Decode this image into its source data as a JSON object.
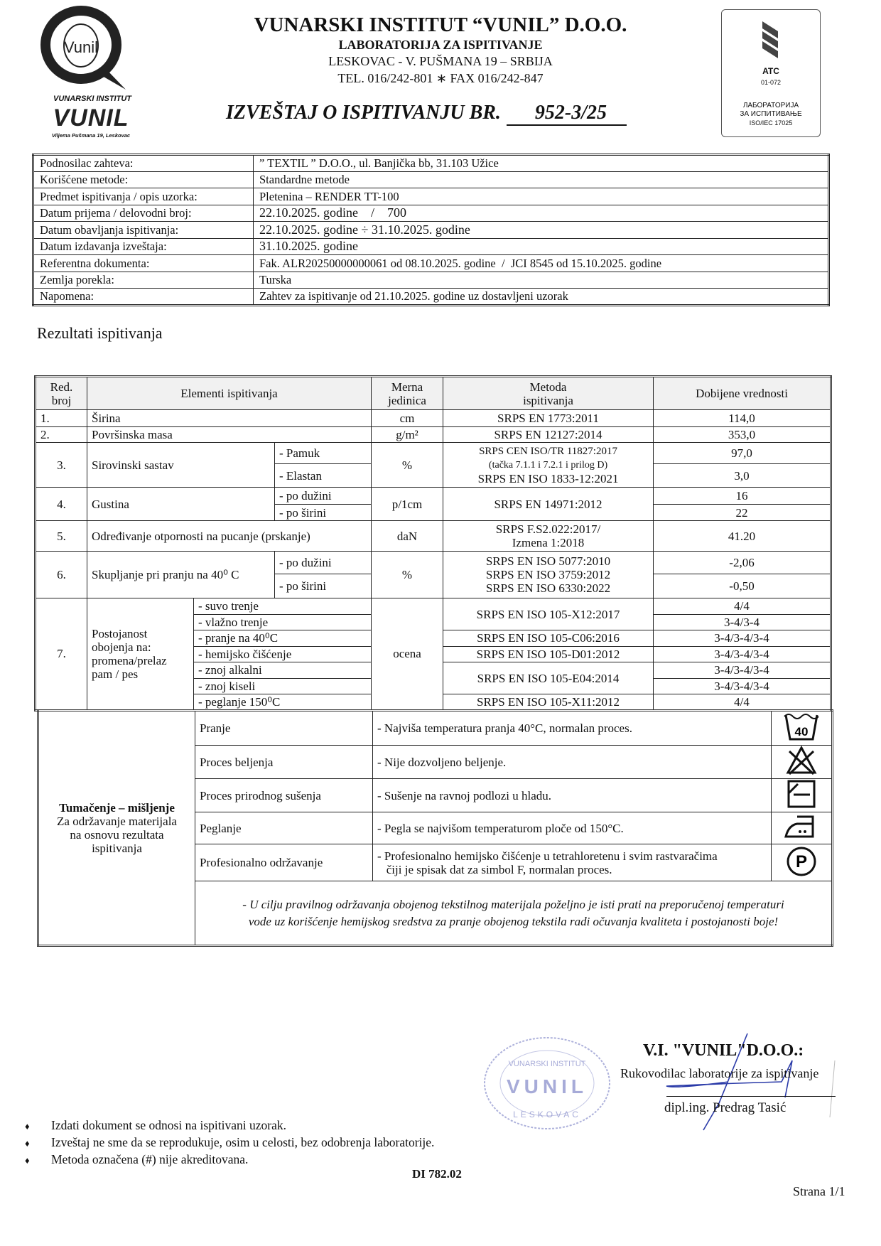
{
  "header": {
    "logo": {
      "brand": "Vunil",
      "caption": "VUNARSKI INSTITUT",
      "wordmark": "VUNIL",
      "address": "Viljema Pušmana 19, Leskovac"
    },
    "institute": "VUNARSKI INSTITUT “VUNIL” D.O.O.",
    "lab": "LABORATORIJA ZA ISPITIVANJE",
    "address": "LESKOVAC - V. PUŠMANA 19 – SRBIJA",
    "phone": "TEL. 016/242-801 ∗ FAX  016/242-847",
    "report_title": "IZVEŠTAJ O ISPITIVANJU BR.",
    "report_number": "952-3/25",
    "accreditation": {
      "mark": "ATC",
      "code": "01-072",
      "line1": "ЛАБОРАТОРИЈА",
      "line2": "ЗА ИСПИТИВАЊЕ",
      "standard": "ISO/IEC 17025"
    }
  },
  "info": {
    "rows": [
      {
        "label": "Podnosilac zahteva:",
        "value": "” TEXTIL ” D.O.O., ul. Banjička bb, 31.103 Užice"
      },
      {
        "label": "Korišćene metode:",
        "value": "Standardne metode"
      },
      {
        "label": "Predmet ispitivanja / opis uzorka:",
        "value": "Pletenina – RENDER TT-100"
      },
      {
        "label": "Datum prijema / delovodni broj:",
        "value": "22.10.2025. godine    /    700"
      },
      {
        "label": "Datum obavljanja ispitivanja:",
        "value": "22.10.2025. godine ÷ 31.10.2025. godine"
      },
      {
        "label": "Datum izdavanja izveštaja:",
        "value": "31.10.2025. godine"
      },
      {
        "label": "Referentna dokumenta:",
        "value": "Fak. ALR20250000000061 od 08.10.2025. godine  /  JCI 8545 od 15.10.2025. godine"
      },
      {
        "label": "Zemlja porekla:",
        "value": "Turska"
      },
      {
        "label": "Napomena:",
        "value": "Zahtev za ispitivanje od 21.10.2025. godine uz dostavljeni uzorak"
      }
    ]
  },
  "results": {
    "title": "Rezultati ispitivanja",
    "headers": {
      "no": [
        "Red.",
        "broj"
      ],
      "element": "Elementi ispitivanja",
      "unit": [
        "Merna",
        "jedinica"
      ],
      "method": [
        "Metoda",
        "ispitivanja"
      ],
      "value": "Dobijene vrednosti"
    },
    "rows": [
      {
        "no": "1.",
        "element": "Širina",
        "unit": "cm",
        "method": "SRPS EN 1773:2011",
        "value": "114,0"
      },
      {
        "no": "2.",
        "element": "Površinska masa",
        "unit": "g/m²",
        "method": "SRPS EN 12127:2014",
        "value": "353,0"
      },
      {
        "no": "3.",
        "element": "Sirovinski sastav",
        "unit": "%",
        "method": [
          "SRPS CEN ISO/TR 11827:2017",
          "(tačka 7.1.1 i 7.2.1 i prilog D)",
          "SRPS EN ISO 1833-12:2021"
        ],
        "sub": [
          {
            "label": "- Pamuk",
            "value": "97,0"
          },
          {
            "label": "- Elastan",
            "value": "3,0"
          }
        ]
      },
      {
        "no": "4.",
        "element": "Gustina",
        "unit": "p/1cm",
        "method": "SRPS EN 14971:2012",
        "sub": [
          {
            "label": "- po dužini",
            "value": "16"
          },
          {
            "label": "- po širini",
            "value": "22"
          }
        ]
      },
      {
        "no": "5.",
        "element": "Određivanje otpornosti na pucanje (prskanje)",
        "unit": "daN",
        "method": [
          "SRPS F.S2.022:2017/",
          "Izmena 1:2018"
        ],
        "value": "41.20"
      },
      {
        "no": "6.",
        "element": "Skupljanje pri pranju na 40⁰ C",
        "unit": "%",
        "method": [
          "SRPS EN ISO 5077:2010",
          "SRPS EN ISO 3759:2012",
          "SRPS EN ISO 6330:2022"
        ],
        "sub": [
          {
            "label": "- po dužini",
            "value": "-2,06"
          },
          {
            "label": "- po širini",
            "value": "-0,50"
          }
        ]
      },
      {
        "no": "7.",
        "element": [
          "Postojanost",
          "obojenja na:",
          "promena/prelaz",
          "pam / pes"
        ],
        "unit": "ocena",
        "methods": [
          "SRPS EN ISO 105-X12:2017",
          "SRPS EN ISO 105-C06:2016",
          "SRPS EN ISO 105-D01:2012",
          "SRPS EN ISO 105-E04:2014",
          "SRPS EN ISO 105-X11:2012"
        ],
        "sub": [
          {
            "label": "- suvo trenje",
            "value": "4/4"
          },
          {
            "label": "- vlažno trenje",
            "value": "3-4/3-4"
          },
          {
            "label": "- pranje na 40⁰C",
            "value": "3-4/3-4/3-4"
          },
          {
            "label": "- hemijsko čišćenje",
            "value": "3-4/3-4/3-4"
          },
          {
            "label": "- znoj alkalni",
            "value": "3-4/3-4/3-4"
          },
          {
            "label": "- znoj kiseli",
            "value": "3-4/3-4/3-4"
          },
          {
            "label": "- peglanje 150⁰C",
            "value": "4/4"
          }
        ]
      }
    ]
  },
  "interpretation": {
    "heading": "Tumačenje – mišljenje",
    "subtitle": [
      "Za održavanje materijala",
      "na osnovu rezultata",
      "ispitivanja"
    ],
    "rows": [
      {
        "label": "Pranje",
        "text": "-  Najviša temperatura pranja 40°C, normalan proces.",
        "icon": "wash-40-icon",
        "icon_text": "40"
      },
      {
        "label": "Proces beljenja",
        "text": "- Nije dozvoljeno beljenje.",
        "icon": "no-bleach-icon"
      },
      {
        "label": "Proces prirodnog sušenja",
        "text": "-  Sušenje na ravnoj podlozi u hladu.",
        "icon": "flat-dry-shade-icon"
      },
      {
        "label": "Peglanje",
        "text": "-  Pegla se najvišom temperaturom ploče od 150°C.",
        "icon": "iron-two-dots-icon"
      },
      {
        "label": "Profesionalno održavanje",
        "text": [
          "-  Profesionalno hemijsko čišćenje u tetrahloretenu i svim rastvaračima",
          "   čiji je spisak dat za simbol F, normalan proces."
        ],
        "icon": "professional-clean-p-icon",
        "icon_text": "P"
      }
    ],
    "note": [
      "- U cilju pravilnog održavanja obojenog tekstilnog materijala poželjno je isti prati na preporučenoj temperaturi",
      "vode uz korišćenje hemijskog sredstva za pranje obojenog tekstila radi očuvanja kvaliteta i postojanosti boje!"
    ]
  },
  "signature": {
    "company": "V.I. \"VUNIL\"D.O.O.:",
    "role": "Rukovodilac laboratorije za ispitivanje",
    "name": "dipl.ing. Predrag Tasić",
    "stamp_text": "VUNARSKI INSTITUT VUNIL LESKOVAC",
    "stamp_color": "#5a63b8",
    "ink_color": "#2a3aa8"
  },
  "footer": {
    "notes": [
      "Izdati dokument se odnosi na ispitivani uzorak.",
      "Izveštaj ne sme da se reprodukuje, osim u celosti, bez odobrenja laboratorije.",
      "Metoda označena (#) nije akreditovana."
    ],
    "doc_code": "DI 782.02",
    "page": "Strana 1/1"
  }
}
